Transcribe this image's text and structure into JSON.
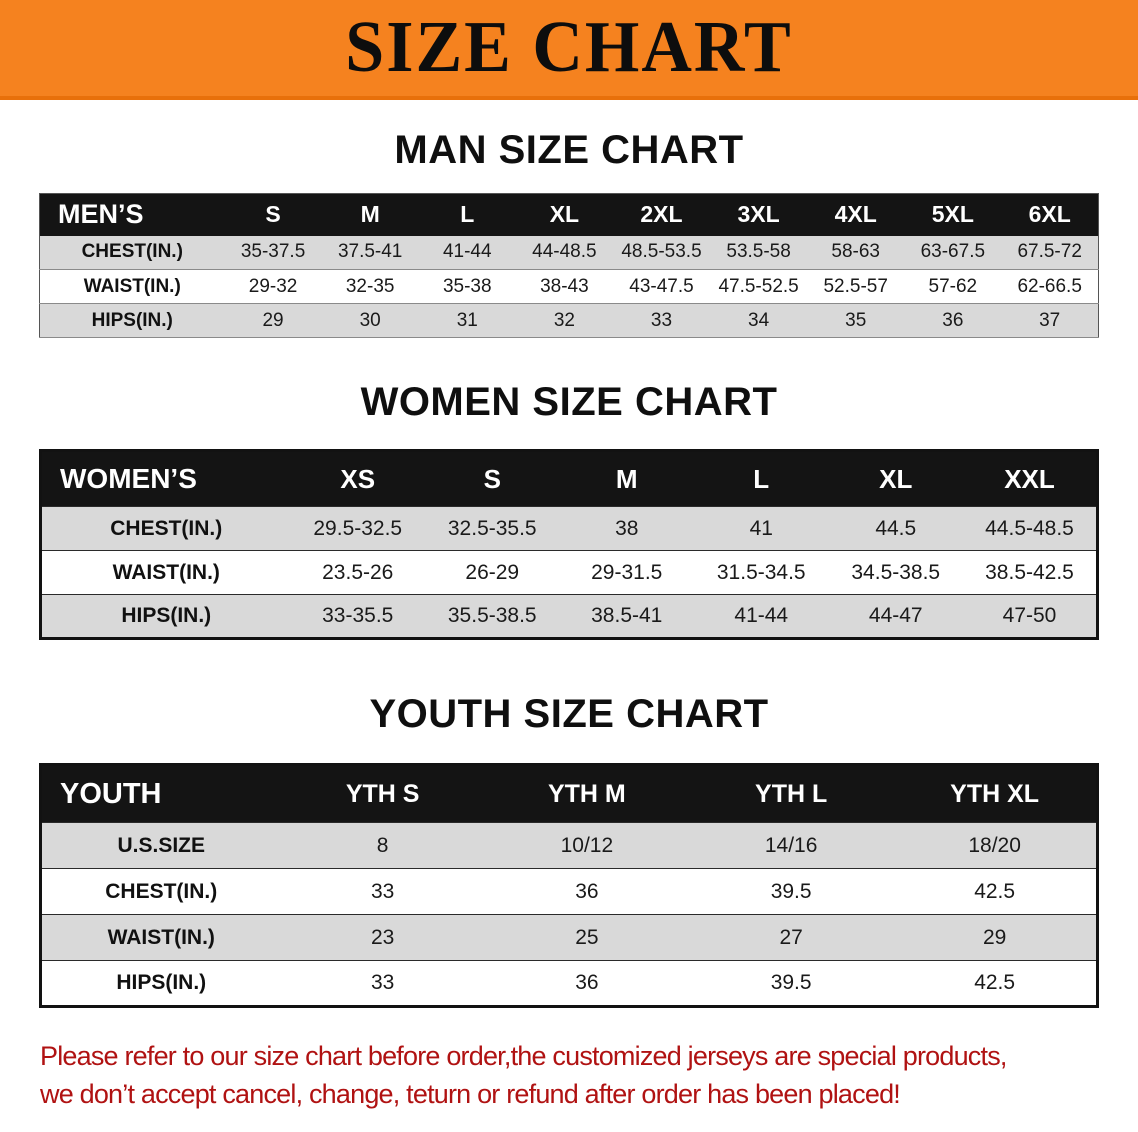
{
  "banner": {
    "title": "SIZE CHART",
    "bg_color": "#F5821F"
  },
  "sections": [
    {
      "id": "men",
      "heading": "MAN SIZE CHART",
      "table": {
        "header": [
          "MEN’S",
          "S",
          "M",
          "L",
          "XL",
          "2XL",
          "3XL",
          "4XL",
          "5XL",
          "6XL"
        ],
        "rows": [
          [
            "CHEST(IN.)",
            "35-37.5",
            "37.5-41",
            "41-44",
            "44-48.5",
            "48.5-53.5",
            "53.5-58",
            "58-63",
            "63-67.5",
            "67.5-72"
          ],
          [
            "WAIST(IN.)",
            "29-32",
            "32-35",
            "35-38",
            "38-43",
            "43-47.5",
            "47.5-52.5",
            "52.5-57",
            "57-62",
            "62-66.5"
          ],
          [
            "HIPS(IN.)",
            "29",
            "30",
            "31",
            "32",
            "33",
            "34",
            "35",
            "36",
            "37"
          ]
        ]
      }
    },
    {
      "id": "women",
      "heading": "WOMEN SIZE CHART",
      "table": {
        "header": [
          "WOMEN’S",
          "XS",
          "S",
          "M",
          "L",
          "XL",
          "XXL"
        ],
        "rows": [
          [
            "CHEST(IN.)",
            "29.5-32.5",
            "32.5-35.5",
            "38",
            "41",
            "44.5",
            "44.5-48.5"
          ],
          [
            "WAIST(IN.)",
            "23.5-26",
            "26-29",
            "29-31.5",
            "31.5-34.5",
            "34.5-38.5",
            "38.5-42.5"
          ],
          [
            "HIPS(IN.)",
            "33-35.5",
            "35.5-38.5",
            "38.5-41",
            "41-44",
            "44-47",
            "47-50"
          ]
        ]
      }
    },
    {
      "id": "youth",
      "heading": "YOUTH SIZE CHART",
      "table": {
        "header": [
          "YOUTH",
          "YTH S",
          "YTH M",
          "YTH L",
          "YTH XL"
        ],
        "rows": [
          [
            "U.S.SIZE",
            "8",
            "10/12",
            "14/16",
            "18/20"
          ],
          [
            "CHEST(IN.)",
            "33",
            "36",
            "39.5",
            "42.5"
          ],
          [
            "WAIST(IN.)",
            "23",
            "25",
            "27",
            "29"
          ],
          [
            "HIPS(IN.)",
            "33",
            "36",
            "39.5",
            "42.5"
          ]
        ]
      }
    }
  ],
  "disclaimer": {
    "color": "#B01212",
    "line1": "Please refer to our size chart before order,the customized jerseys are special products,",
    "line2": "we don’t accept cancel, change, teturn or refund after order has been placed!"
  }
}
